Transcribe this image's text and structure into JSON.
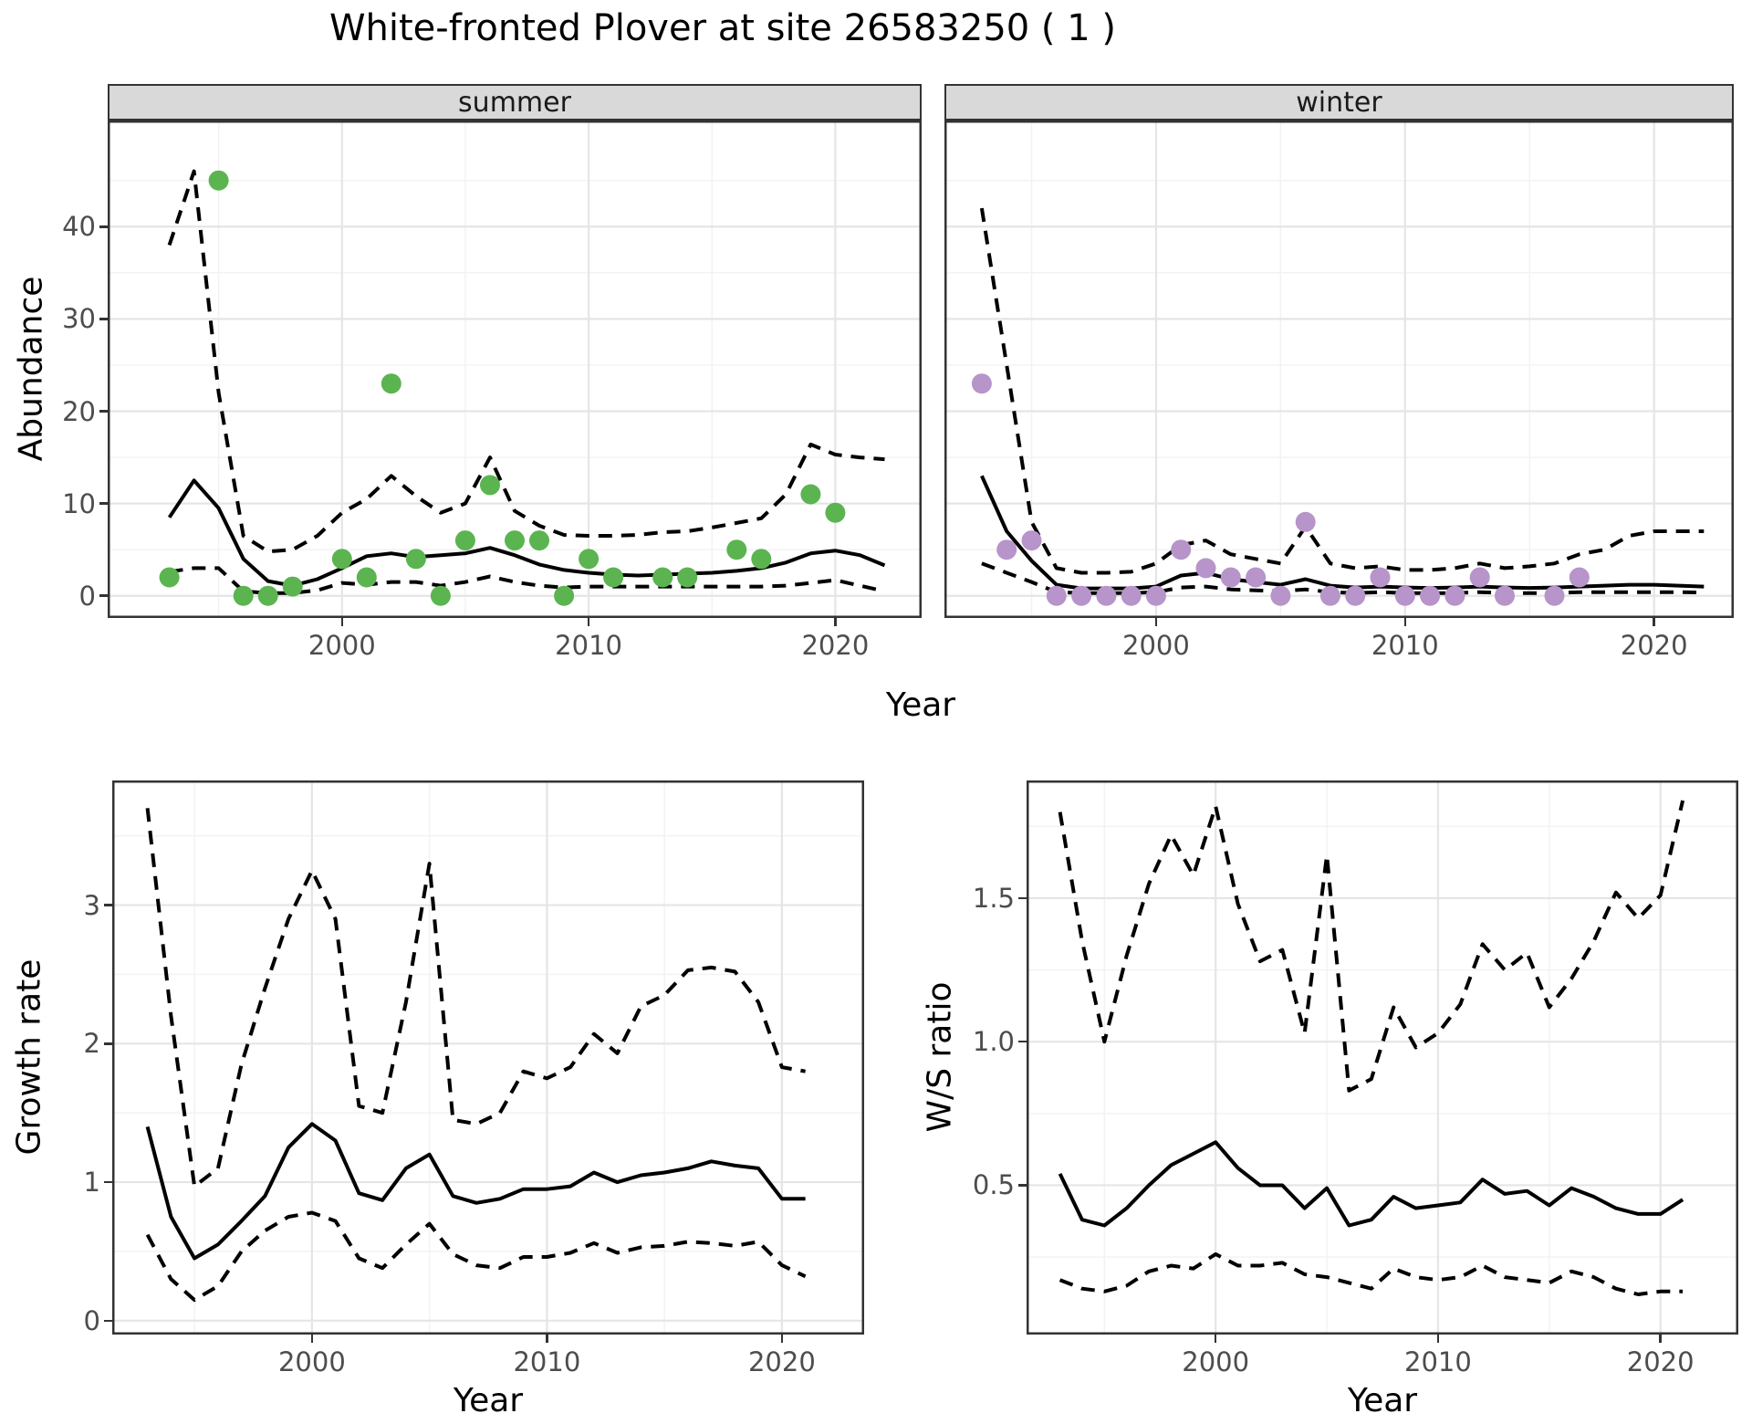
{
  "title": "White-fronted Plover at site 26583250 ( 1 )",
  "colors": {
    "summer_points": "#5bb450",
    "winter_points": "#b794c9",
    "line": "#000000",
    "strip_background": "#d9d9d9",
    "tick_label": "#4d4d4d"
  },
  "chart_data": [
    {
      "id": "abundance-summer",
      "type": "line",
      "facet_label": "summer",
      "xlabel": "Year",
      "ylabel": "Abundance",
      "xlim": [
        1990.5,
        2023.5
      ],
      "ylim": [
        -2.4,
        51.5
      ],
      "xticks": [
        2000,
        2010,
        2020
      ],
      "yticks": [
        0,
        10,
        20,
        30,
        40
      ],
      "xminor": [
        1995,
        2005,
        2015
      ],
      "yminor": [
        5,
        15,
        25,
        35,
        45
      ],
      "legend": "none",
      "grid": "on",
      "x": [
        1993,
        1994,
        1995,
        1996,
        1997,
        1998,
        1999,
        2000,
        2001,
        2002,
        2003,
        2004,
        2005,
        2006,
        2007,
        2008,
        2009,
        2010,
        2011,
        2012,
        2013,
        2014,
        2015,
        2016,
        2017,
        2018,
        2019,
        2020,
        2021,
        2022
      ],
      "series": [
        {
          "name": "fitted-median",
          "style": "solid",
          "values": [
            8.5,
            12.5,
            9.5,
            4,
            1.6,
            1.1,
            1.8,
            3,
            4.3,
            4.6,
            4.2,
            4.4,
            4.6,
            5.2,
            4.4,
            3.4,
            2.8,
            2.5,
            2.3,
            2.2,
            2.3,
            2.4,
            2.5,
            2.7,
            3,
            3.6,
            4.6,
            4.9,
            4.4,
            3.3
          ]
        },
        {
          "name": "upper-ci",
          "style": "dashed",
          "values": [
            38,
            46,
            22,
            6.5,
            4.8,
            5,
            6.5,
            9,
            10.5,
            13,
            10.8,
            9,
            10,
            15,
            9.2,
            7.6,
            6.6,
            6.5,
            6.5,
            6.6,
            6.9,
            7,
            7.4,
            7.9,
            8.4,
            11,
            16.4,
            15.3,
            15,
            14.8
          ]
        },
        {
          "name": "lower-ci",
          "style": "dashed",
          "values": [
            2.6,
            3,
            3,
            0.5,
            0.3,
            0.3,
            0.6,
            1.4,
            1.2,
            1.5,
            1.5,
            1.1,
            1.5,
            2.1,
            1.5,
            1.1,
            0.9,
            1,
            1,
            1,
            1,
            1,
            1,
            1,
            1,
            1.1,
            1.4,
            1.7,
            1.1,
            0.5
          ]
        }
      ],
      "points": {
        "name": "observed-counts-summer",
        "color": "#5bb450",
        "x": [
          1993,
          1995,
          1996,
          1997,
          1998,
          2000,
          2001,
          2002,
          2003,
          2004,
          2005,
          2006,
          2007,
          2008,
          2009,
          2010,
          2011,
          2013,
          2014,
          2016,
          2017,
          2019,
          2020
        ],
        "y": [
          2,
          45,
          0,
          0,
          1,
          4,
          2,
          23,
          4,
          0,
          6,
          12,
          6,
          6,
          0,
          4,
          2,
          2,
          2,
          5,
          4,
          11,
          9
        ]
      }
    },
    {
      "id": "abundance-winter",
      "type": "line",
      "facet_label": "winter",
      "xlabel": "Year",
      "ylabel": "Abundance",
      "xlim": [
        1991.5,
        2023.2
      ],
      "ylim": [
        -2.4,
        51.5
      ],
      "xticks": [
        2000,
        2010,
        2020
      ],
      "yticks": [
        0,
        10,
        20,
        30,
        40
      ],
      "xminor": [
        1995,
        2005,
        2015
      ],
      "yminor": [
        5,
        15,
        25,
        35,
        45
      ],
      "legend": "none",
      "grid": "on",
      "x": [
        1993,
        1994,
        1995,
        1996,
        1997,
        1998,
        1999,
        2000,
        2001,
        2002,
        2003,
        2004,
        2005,
        2006,
        2007,
        2008,
        2009,
        2010,
        2011,
        2012,
        2013,
        2014,
        2015,
        2016,
        2017,
        2018,
        2019,
        2020,
        2021,
        2022
      ],
      "series": [
        {
          "name": "fitted-median",
          "style": "solid",
          "values": [
            13,
            7,
            3.8,
            1.2,
            0.8,
            0.8,
            0.8,
            1,
            2.2,
            2.5,
            1.8,
            1.5,
            1.2,
            1.8,
            1.1,
            0.9,
            1,
            0.9,
            0.85,
            0.9,
            1,
            0.9,
            0.85,
            0.9,
            1,
            1.1,
            1.2,
            1.2,
            1.1,
            1
          ]
        },
        {
          "name": "upper-ci",
          "style": "dashed",
          "values": [
            42,
            25,
            8,
            3,
            2.5,
            2.5,
            2.6,
            3.5,
            5.5,
            6,
            4.5,
            4,
            3.5,
            7.5,
            3.5,
            3,
            3.2,
            2.8,
            2.8,
            3,
            3.5,
            3,
            3.2,
            3.5,
            4.5,
            5,
            6.5,
            7,
            7,
            7
          ]
        },
        {
          "name": "lower-ci",
          "style": "dashed",
          "values": [
            3.5,
            2.5,
            1.5,
            0.4,
            0.3,
            0.3,
            0.3,
            0.4,
            0.9,
            1,
            0.7,
            0.6,
            0.5,
            0.7,
            0.4,
            0.3,
            0.4,
            0.3,
            0.3,
            0.3,
            0.4,
            0.3,
            0.3,
            0.3,
            0.4,
            0.4,
            0.4,
            0.4,
            0.4,
            0.35
          ]
        }
      ],
      "points": {
        "name": "observed-counts-winter",
        "color": "#b794c9",
        "x": [
          1993,
          1994,
          1995,
          1996,
          1997,
          1998,
          1999,
          2000,
          2001,
          2002,
          2003,
          2004,
          2005,
          2006,
          2007,
          2008,
          2009,
          2010,
          2011,
          2012,
          2013,
          2014,
          2016,
          2017
        ],
        "y": [
          23,
          5,
          6,
          0,
          0,
          0,
          0,
          0,
          5,
          3,
          2,
          2,
          0,
          8,
          0,
          0,
          2,
          0,
          0,
          0,
          2,
          0,
          0,
          2
        ]
      }
    },
    {
      "id": "growth-rate",
      "type": "line",
      "facet_label": "",
      "xlabel": "Year",
      "ylabel": "Growth rate",
      "xlim": [
        1991.5,
        2023.5
      ],
      "ylim": [
        -0.1,
        3.9
      ],
      "xticks": [
        2000,
        2010,
        2020
      ],
      "yticks": [
        0,
        1,
        2,
        3
      ],
      "xminor": [
        1995,
        2005,
        2015
      ],
      "yminor": [
        0.5,
        1.5,
        2.5,
        3.5
      ],
      "legend": "none",
      "grid": "on",
      "x": [
        1993,
        1994,
        1995,
        1996,
        1997,
        1998,
        1999,
        2000,
        2001,
        2002,
        2003,
        2004,
        2005,
        2006,
        2007,
        2008,
        2009,
        2010,
        2011,
        2012,
        2013,
        2014,
        2015,
        2016,
        2017,
        2018,
        2019,
        2020,
        2021
      ],
      "series": [
        {
          "name": "fitted-median",
          "style": "solid",
          "values": [
            1.4,
            0.75,
            0.45,
            0.55,
            0.72,
            0.9,
            1.25,
            1.42,
            1.3,
            0.92,
            0.87,
            1.1,
            1.2,
            0.9,
            0.85,
            0.88,
            0.95,
            0.95,
            0.97,
            1.07,
            1,
            1.05,
            1.07,
            1.1,
            1.15,
            1.12,
            1.1,
            0.88,
            0.88
          ]
        },
        {
          "name": "upper-ci",
          "style": "dashed",
          "values": [
            3.7,
            2.2,
            0.97,
            1.1,
            1.85,
            2.4,
            2.9,
            3.25,
            2.9,
            1.55,
            1.5,
            2.3,
            3.3,
            1.45,
            1.42,
            1.5,
            1.8,
            1.75,
            1.83,
            2.07,
            1.93,
            2.27,
            2.35,
            2.53,
            2.55,
            2.52,
            2.3,
            1.83,
            1.8
          ]
        },
        {
          "name": "lower-ci",
          "style": "dashed",
          "values": [
            0.62,
            0.3,
            0.15,
            0.25,
            0.5,
            0.65,
            0.75,
            0.78,
            0.72,
            0.45,
            0.38,
            0.55,
            0.7,
            0.48,
            0.4,
            0.38,
            0.46,
            0.46,
            0.49,
            0.56,
            0.49,
            0.53,
            0.54,
            0.57,
            0.56,
            0.54,
            0.57,
            0.4,
            0.32
          ]
        }
      ]
    },
    {
      "id": "ws-ratio",
      "type": "line",
      "facet_label": "",
      "xlabel": "Year",
      "ylabel": "W/S ratio",
      "xlim": [
        1991.5,
        2023.5
      ],
      "ylim": [
        -0.02,
        1.91
      ],
      "xticks": [
        2000,
        2010,
        2020
      ],
      "yticks": [
        0.5,
        1.0,
        1.5
      ],
      "ytick_labels": [
        "0.5",
        "1.0",
        "1.5"
      ],
      "xminor": [
        1995,
        2005,
        2015
      ],
      "yminor": [
        0.25,
        0.75,
        1.25,
        1.75
      ],
      "legend": "none",
      "grid": "on",
      "x": [
        1993,
        1994,
        1995,
        1996,
        1997,
        1998,
        1999,
        2000,
        2001,
        2002,
        2003,
        2004,
        2005,
        2006,
        2007,
        2008,
        2009,
        2010,
        2011,
        2012,
        2013,
        2014,
        2015,
        2016,
        2017,
        2018,
        2019,
        2020,
        2021
      ],
      "series": [
        {
          "name": "fitted-median",
          "style": "solid",
          "values": [
            0.54,
            0.38,
            0.36,
            0.42,
            0.5,
            0.57,
            0.61,
            0.65,
            0.56,
            0.5,
            0.5,
            0.42,
            0.49,
            0.36,
            0.38,
            0.46,
            0.42,
            0.43,
            0.44,
            0.52,
            0.47,
            0.48,
            0.43,
            0.49,
            0.46,
            0.42,
            0.4,
            0.4,
            0.45
          ]
        },
        {
          "name": "upper-ci",
          "style": "dashed",
          "values": [
            1.8,
            1.35,
            1,
            1.3,
            1.55,
            1.72,
            1.58,
            1.82,
            1.48,
            1.28,
            1.32,
            1.03,
            1.65,
            0.83,
            0.87,
            1.12,
            0.98,
            1.03,
            1.13,
            1.34,
            1.25,
            1.31,
            1.12,
            1.22,
            1.35,
            1.52,
            1.43,
            1.51,
            1.84
          ]
        },
        {
          "name": "lower-ci",
          "style": "dashed",
          "values": [
            0.17,
            0.14,
            0.13,
            0.15,
            0.2,
            0.22,
            0.21,
            0.26,
            0.22,
            0.22,
            0.23,
            0.19,
            0.18,
            0.16,
            0.14,
            0.21,
            0.18,
            0.17,
            0.18,
            0.22,
            0.18,
            0.17,
            0.16,
            0.2,
            0.18,
            0.14,
            0.12,
            0.13,
            0.13
          ]
        }
      ]
    }
  ]
}
